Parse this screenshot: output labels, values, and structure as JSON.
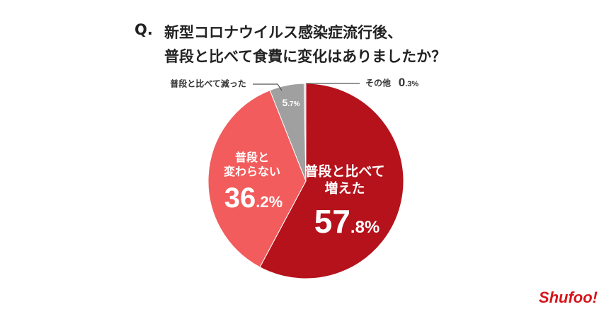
{
  "chart_data": {
    "type": "pie",
    "title_marker": "Q.",
    "title": [
      "新型コロナウイルス感染症流行後、",
      "普段と比べて食費に変化はありましたか？"
    ],
    "categories": [
      "普段と比べて\n増えた",
      "普段と\n変わらない",
      "普段と比べて減った",
      "その他"
    ],
    "values": [
      57.8,
      36.2,
      5.7,
      0.3
    ],
    "value_labels": [
      "57.8%",
      "36.2%",
      "5.7%",
      "0.3%"
    ],
    "colors": [
      "#b5121b",
      "#f25c5c",
      "#a0a0a0",
      "#cfcfcf"
    ],
    "brand": "Shufoo!"
  }
}
